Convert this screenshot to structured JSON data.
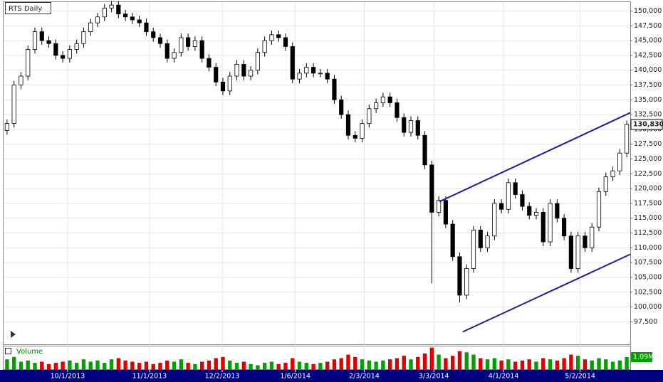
{
  "chart_data": {
    "type": "candlestick",
    "title": "RTS Daily",
    "open": [
      129800,
      131000,
      137500,
      139000,
      143500,
      146500,
      145000,
      144500,
      142500,
      142000,
      143500,
      144500,
      146500,
      148000,
      149000,
      150500,
      151000,
      149500,
      149000,
      148500,
      148000,
      146500,
      145500,
      144500,
      142000,
      143000,
      145500,
      144000,
      145000,
      142000,
      140500,
      138000,
      136500,
      139000,
      141000,
      139000,
      140000,
      143000,
      145000,
      146000,
      145500,
      144000,
      138500,
      139500,
      140500,
      139500,
      139500,
      138500,
      135000,
      132500,
      129000,
      128500,
      131000,
      133500,
      134500,
      135500,
      134500,
      132000,
      129500,
      131500,
      129000,
      124000,
      116000,
      118000,
      114000,
      108500,
      102000,
      106500,
      113000,
      110000,
      112000,
      117500,
      116500,
      121000,
      119000,
      117000,
      115500,
      116000,
      111000,
      117500,
      115000,
      112000,
      106500,
      112000,
      110000,
      113500,
      119500,
      122000,
      123000,
      126000
    ],
    "high": [
      131700,
      138200,
      139700,
      144200,
      147200,
      147200,
      145700,
      145200,
      143200,
      144200,
      145200,
      147200,
      148700,
      149700,
      151200,
      151700,
      151700,
      150200,
      149700,
      149200,
      148700,
      147200,
      146200,
      145200,
      143700,
      146200,
      146200,
      145700,
      145700,
      142700,
      141200,
      138700,
      139700,
      141700,
      141700,
      140700,
      143700,
      145700,
      146700,
      146700,
      146200,
      144700,
      140200,
      141200,
      141200,
      140200,
      140200,
      139200,
      135700,
      133200,
      129700,
      131700,
      134200,
      135200,
      136200,
      136200,
      135200,
      132700,
      132200,
      132200,
      129700,
      124700,
      118700,
      118700,
      114700,
      109200,
      107200,
      113700,
      113700,
      112700,
      118200,
      118200,
      121700,
      121700,
      119700,
      117700,
      116700,
      116700,
      118200,
      118200,
      115700,
      112700,
      112700,
      112700,
      114200,
      120200,
      122700,
      123700,
      126700,
      131500
    ],
    "low": [
      129100,
      130300,
      136800,
      138300,
      142800,
      144300,
      143800,
      141800,
      141300,
      141300,
      142800,
      143800,
      145800,
      147300,
      148300,
      149800,
      148800,
      148300,
      147800,
      147300,
      145800,
      144800,
      143800,
      141300,
      141300,
      142300,
      143300,
      143300,
      141300,
      139800,
      137300,
      135800,
      135800,
      138300,
      138300,
      138300,
      139300,
      142300,
      144300,
      144800,
      143300,
      137800,
      137800,
      138800,
      138800,
      138800,
      137800,
      134300,
      131800,
      128300,
      127800,
      127800,
      130300,
      132800,
      133800,
      133800,
      131300,
      128800,
      128800,
      128300,
      123300,
      104000,
      115300,
      113300,
      107800,
      100800,
      101300,
      105800,
      109300,
      109300,
      111300,
      115800,
      115800,
      118300,
      116300,
      114800,
      114800,
      110300,
      110300,
      114300,
      111300,
      105800,
      105800,
      109300,
      109300,
      112800,
      118800,
      121300,
      122300,
      125300
    ],
    "close": [
      131000,
      137500,
      139000,
      143500,
      146500,
      145000,
      144500,
      142500,
      142000,
      143500,
      144500,
      146500,
      148000,
      149000,
      150500,
      151000,
      149500,
      149000,
      148500,
      148000,
      146500,
      145500,
      144500,
      142000,
      143000,
      145500,
      144000,
      145000,
      142000,
      140500,
      138000,
      136500,
      139000,
      141000,
      139000,
      140000,
      143000,
      145000,
      146000,
      145500,
      144000,
      138500,
      139500,
      140500,
      139500,
      139500,
      138500,
      135000,
      132500,
      129000,
      128500,
      131000,
      133500,
      134500,
      135500,
      134500,
      132000,
      129500,
      131500,
      129000,
      124000,
      116000,
      118000,
      114000,
      108500,
      102000,
      106500,
      113000,
      110000,
      112000,
      117500,
      116500,
      121000,
      119000,
      117000,
      115500,
      116000,
      111000,
      117500,
      115000,
      112000,
      106500,
      112000,
      110000,
      113500,
      119500,
      122000,
      123000,
      126000,
      130830
    ],
    "last_price": {
      "value": 130830,
      "label": "130,830"
    },
    "xlim": [
      0,
      90
    ],
    "xticks": [
      {
        "value": 9.2,
        "label": "10/1/2013"
      },
      {
        "value": 20.96,
        "label": "11/1/2013"
      },
      {
        "value": 31.4,
        "label": "12/2/2013"
      },
      {
        "value": 41.9,
        "label": "1/6/2014"
      },
      {
        "value": 51.8,
        "label": "2/3/2014"
      },
      {
        "value": 61.8,
        "label": "3/3/2014"
      },
      {
        "value": 71.8,
        "label": "4/1/2014"
      },
      {
        "value": 82.8,
        "label": "5/2/2014"
      }
    ],
    "ylim": [
      93700,
      151500
    ],
    "yticks": [
      {
        "value": 97500,
        "label": "97,500"
      },
      {
        "value": 100000,
        "label": "100,000"
      },
      {
        "value": 102500,
        "label": "102,500"
      },
      {
        "value": 105000,
        "label": "105,000"
      },
      {
        "value": 107500,
        "label": "107,500"
      },
      {
        "value": 110000,
        "label": "110,000"
      },
      {
        "value": 112500,
        "label": "112,500"
      },
      {
        "value": 115000,
        "label": "115,000"
      },
      {
        "value": 117500,
        "label": "117,500"
      },
      {
        "value": 120000,
        "label": "120,000"
      },
      {
        "value": 122500,
        "label": "122,500"
      },
      {
        "value": 125000,
        "label": "125,000"
      },
      {
        "value": 127500,
        "label": "127,500"
      },
      {
        "value": 130000,
        "label": "130,000"
      },
      {
        "value": 132500,
        "label": "132,500"
      },
      {
        "value": 135000,
        "label": "135,000"
      },
      {
        "value": 137500,
        "label": "137,500"
      },
      {
        "value": 140000,
        "label": "140,000"
      },
      {
        "value": 142500,
        "label": "142,500"
      },
      {
        "value": 145000,
        "label": "145,000"
      },
      {
        "value": 147500,
        "label": "147,500"
      },
      {
        "value": 150000,
        "label": "150,000"
      }
    ],
    "grid": true,
    "up_color": "#ffffff",
    "down_color": "#000000",
    "lines": [
      {
        "x": [
          62.6,
          90
        ],
        "y": [
          117800,
          132820
        ],
        "color": "#1c1ca8"
      },
      {
        "x": [
          65.95,
          90
        ],
        "y": [
          95800,
          108900
        ],
        "color": "#1c1ca8"
      }
    ],
    "volume": {
      "label": "Volume",
      "ylim": [
        0,
        2000000
      ],
      "up_color": "#00a000",
      "down_color": "#e00000",
      "values": [
        900000,
        1100000,
        700000,
        800000,
        600000,
        700000,
        500000,
        600000,
        700000,
        800000,
        600000,
        900000,
        700000,
        800000,
        600000,
        900000,
        1000000,
        800000,
        700000,
        600000,
        700000,
        500000,
        600000,
        800000,
        700000,
        900000,
        600000,
        500000,
        700000,
        800000,
        1000000,
        1100000,
        800000,
        600000,
        700000,
        500000,
        400000,
        600000,
        700000,
        500000,
        600000,
        1000000,
        700000,
        600000,
        500000,
        600000,
        700000,
        900000,
        1000000,
        1300000,
        1100000,
        900000,
        800000,
        700000,
        800000,
        900000,
        1000000,
        1200000,
        900000,
        1100000,
        1400000,
        1900000,
        1300000,
        1000000,
        1200000,
        1600000,
        1500000,
        1300000,
        1000000,
        900000,
        1000000,
        800000,
        900000,
        700000,
        800000,
        900000,
        700000,
        1000000,
        900000,
        800000,
        1000000,
        1300000,
        1200000,
        900000,
        800000,
        1000000,
        900000,
        700000,
        800000,
        1090000
      ],
      "last_value_label": {
        "value": 1090000,
        "label": "1.09M"
      }
    }
  }
}
